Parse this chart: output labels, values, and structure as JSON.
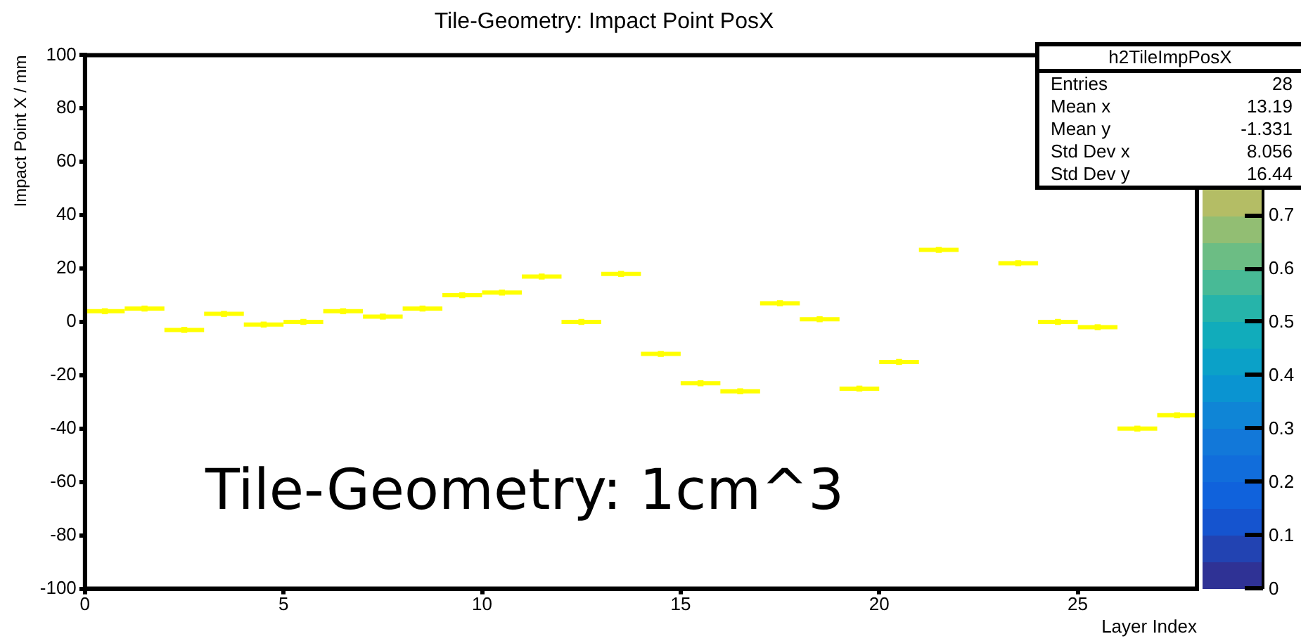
{
  "chart_data": {
    "type": "scatter",
    "title": "Tile-Geometry: Impact Point PosX",
    "xlabel": "Layer Index",
    "ylabel": "Impact Point X / mm",
    "x": [
      0.5,
      1.5,
      2.5,
      3.5,
      4.5,
      5.5,
      6.5,
      7.5,
      8.5,
      9.5,
      10.5,
      11.5,
      12.5,
      13.5,
      14.5,
      15.5,
      16.5,
      17.5,
      18.5,
      19.5,
      20.5,
      21.5,
      23.5,
      24.5,
      25.5,
      26.5,
      27.5
    ],
    "values": [
      4,
      5,
      -3,
      3,
      -1,
      0,
      4,
      2,
      5,
      10,
      11,
      17,
      0,
      18,
      -12,
      -23,
      -26,
      7,
      1,
      -25,
      -15,
      27,
      22,
      0,
      -2,
      -40,
      -35
    ],
    "color": "#ffff00",
    "marker": "square",
    "xerrors": [
      0.5,
      0.5,
      0.5,
      0.5,
      0.5,
      0.5,
      0.5,
      0.5,
      0.5,
      0.5,
      0.5,
      0.5,
      0.5,
      0.5,
      0.5,
      0.5,
      0.5,
      0.5,
      0.5,
      0.5,
      0.5,
      0.5,
      0.5,
      0.5,
      0.5,
      0.5,
      0.5
    ],
    "clim": [
      0,
      1
    ],
    "cticks": [
      0,
      0.1,
      0.2,
      0.3,
      0.4,
      0.5,
      0.6,
      0.7
    ],
    "xlim": [
      0,
      28
    ],
    "xticks": [
      0,
      5,
      10,
      15,
      20,
      25
    ],
    "ylim": [
      -100,
      100
    ],
    "yticks": [
      -100,
      -80,
      -60,
      -40,
      -20,
      0,
      20,
      40,
      60,
      80,
      100
    ],
    "annotations": [
      "h2TileImpPosX",
      "Entries 28",
      "Mean x 13.19",
      "Mean y -1.331",
      "Std Dev x 8.056",
      "Std Dev y 16.44",
      "Tile-Geometry: 1cm^3"
    ]
  }
}
